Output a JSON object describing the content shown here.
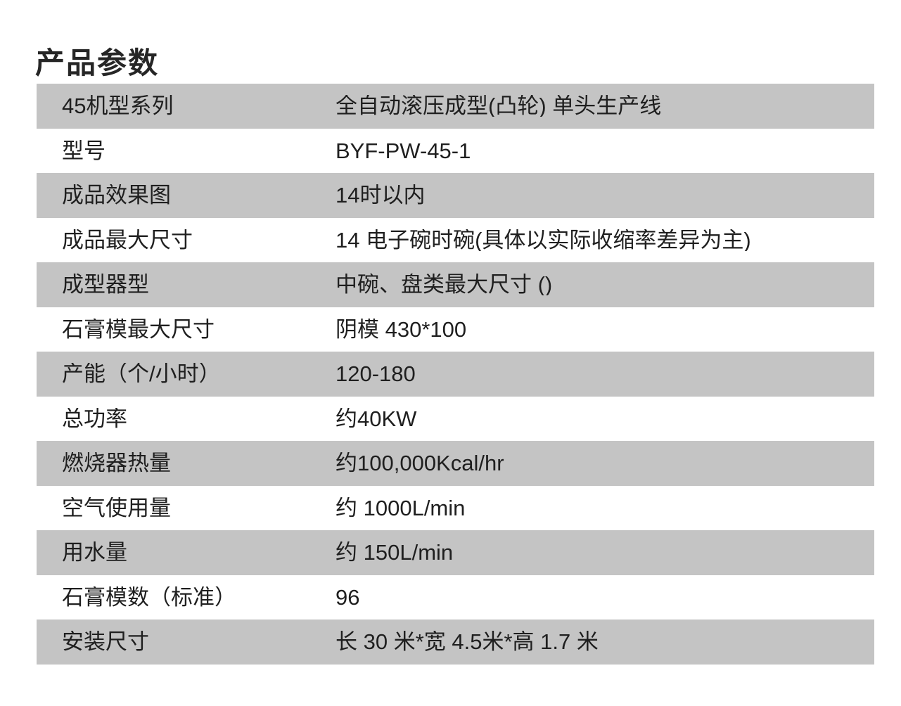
{
  "page": {
    "title": "产品参数"
  },
  "colors": {
    "background": "#ffffff",
    "row_shaded": "#c4c4c4",
    "row_plain": "#ffffff",
    "text": "#1f1f1f"
  },
  "table": {
    "rows": [
      {
        "label": "45机型系列",
        "value": "全自动滚压成型(凸轮) 单头生产线"
      },
      {
        "label": "型号",
        "value": "BYF-PW-45-1"
      },
      {
        "label": "成品效果图",
        "value": "14时以内"
      },
      {
        "label": "成品最大尺寸",
        "value": "14 电子碗时碗(具体以实际收缩率差异为主)"
      },
      {
        "label": "成型器型",
        "value": "中碗、盘类最大尺寸 ()"
      },
      {
        "label": "石膏模最大尺寸",
        "value": "阴模 430*100"
      },
      {
        "label": "产能（个/小时）",
        "value": "120-180"
      },
      {
        "label": "总功率",
        "value": "约40KW"
      },
      {
        "label": "燃烧器热量",
        "value": "约100,000Kcal/hr"
      },
      {
        "label": "空气使用量",
        "value": "约 1000L/min"
      },
      {
        "label": "用水量",
        "value": "约 150L/min"
      },
      {
        "label": "石膏模数（标准）",
        "value": "96"
      },
      {
        "label": "安装尺寸",
        "value": "长 30 米*宽 4.5米*高 1.7 米"
      }
    ]
  }
}
